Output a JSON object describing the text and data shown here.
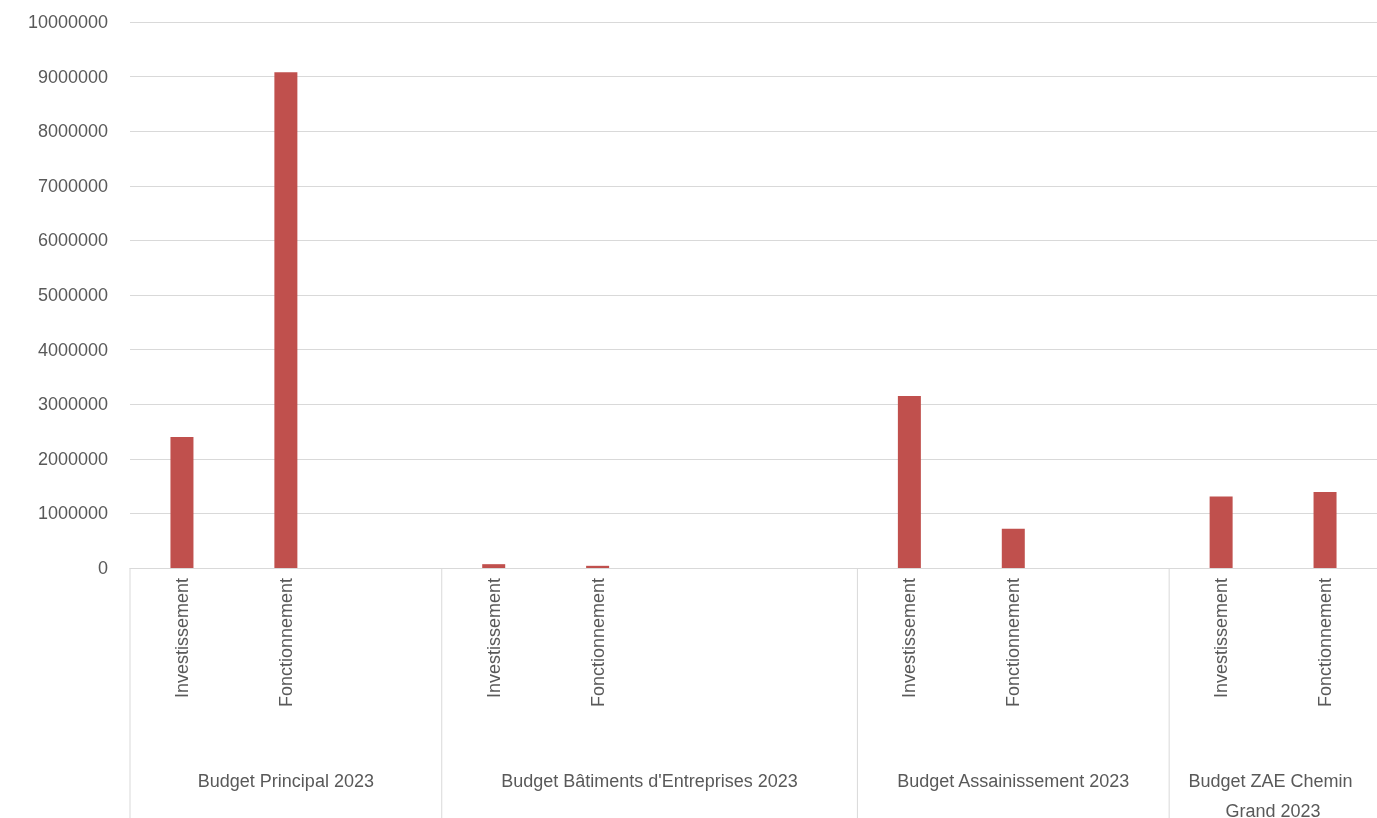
{
  "chart_data": {
    "type": "bar",
    "categories": [
      "Investissement",
      "Fonctionnement",
      null,
      "Investissement",
      "Fonctionnement",
      null,
      null,
      "Investissement",
      "Fonctionnement",
      null,
      "Investissement",
      "Fonctionnement"
    ],
    "values": [
      2400000,
      9080000,
      null,
      70000,
      40000,
      null,
      null,
      3150000,
      720000,
      null,
      1310000,
      1390000
    ],
    "color": "#c0504d",
    "ylim": [
      0,
      10000000
    ],
    "yticks": [
      0,
      1000000,
      2000000,
      3000000,
      4000000,
      5000000,
      6000000,
      7000000,
      8000000,
      9000000,
      10000000
    ],
    "grid": "y",
    "annotations": [
      "Budget Principal 2023",
      "Budget Bâtiments d'Entreprises 2023",
      "Budget Assainissement 2023",
      "Budget ZAE Chemin Grand 2023"
    ]
  }
}
